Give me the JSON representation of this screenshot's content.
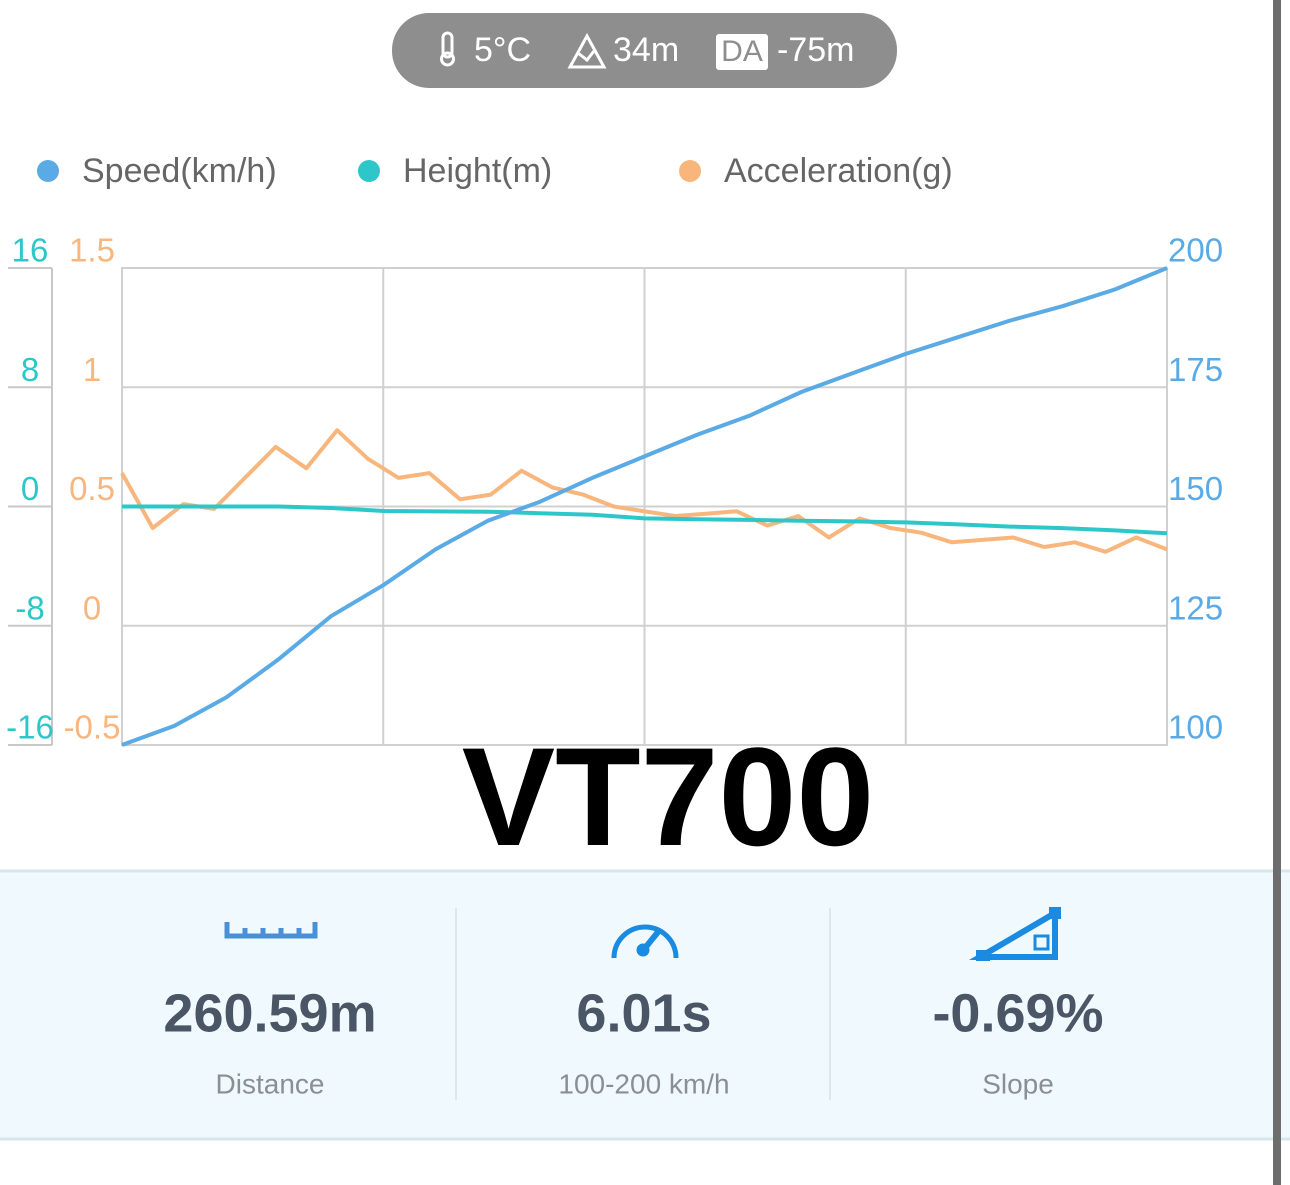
{
  "status": {
    "temperature": "5°C",
    "altitude": "34m",
    "da_badge": "DA",
    "density_altitude": "-75m"
  },
  "chart_data": {
    "type": "line",
    "grid": true,
    "legend": "top-left",
    "ylim": [
      -16,
      16
    ],
    "yticks": [
      -16,
      -8,
      0,
      8,
      16
    ],
    "y2lim": [
      100,
      200
    ],
    "y2ticks": [
      100,
      125,
      150,
      175,
      200
    ],
    "y3lim": [
      -0.5,
      1.5
    ],
    "y3ticks": [
      -0.5,
      0,
      0.5,
      1,
      1.5
    ],
    "series": [
      {
        "name": "Speed(km/h)",
        "color": "#5aaae6",
        "axis": "y2",
        "values": [
          100,
          104,
          110,
          118,
          127,
          133.5,
          141,
          147,
          151,
          156,
          160.5,
          165,
          169,
          174,
          178,
          182,
          185.5,
          189,
          192,
          195.5,
          200
        ]
      },
      {
        "name": "Height(m)",
        "color": "#2ec7c9",
        "axis": "y",
        "values": [
          0,
          0,
          0,
          0,
          -0.1,
          -0.3,
          -0.33,
          -0.35,
          -0.45,
          -0.55,
          -0.8,
          -0.85,
          -0.9,
          -0.95,
          -1.0,
          -1.07,
          -1.2,
          -1.35,
          -1.45,
          -1.6,
          -1.8
        ]
      },
      {
        "name": "Acceleration(g)",
        "color": "#f8b67d",
        "axis": "y3",
        "values": [
          0.64,
          0.41,
          0.51,
          0.49,
          0.62,
          0.75,
          0.66,
          0.82,
          0.7,
          0.62,
          0.64,
          0.53,
          0.55,
          0.65,
          0.58,
          0.55,
          0.5,
          0.48,
          0.46,
          0.47,
          0.48,
          0.42,
          0.46,
          0.37,
          0.45,
          0.41,
          0.39,
          0.35,
          0.36,
          0.37,
          0.33,
          0.35,
          0.31,
          0.37,
          0.32
        ]
      }
    ]
  },
  "title": "VT700",
  "stats": [
    {
      "value": "260.59m",
      "label": "Distance"
    },
    {
      "value": "6.01s",
      "label": "100-200 km/h"
    },
    {
      "value": "-0.69%",
      "label": "Slope"
    }
  ]
}
